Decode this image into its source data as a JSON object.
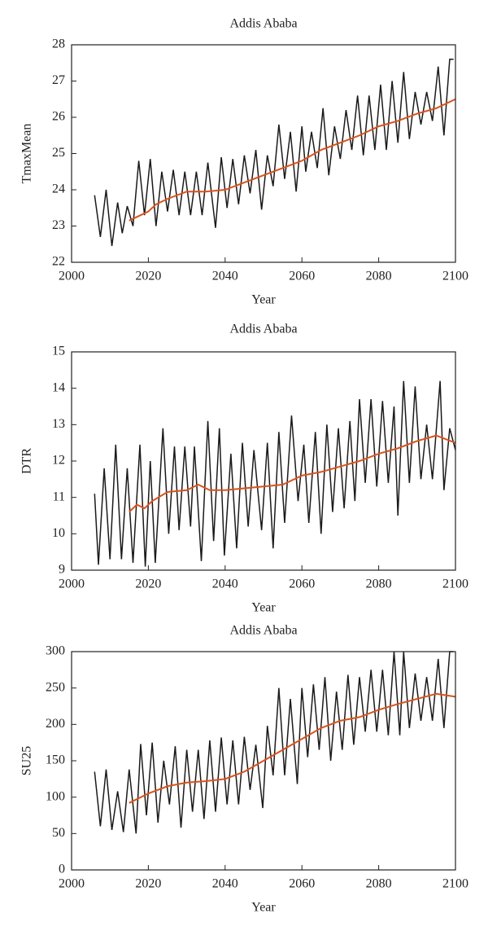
{
  "chart_data": [
    {
      "type": "line",
      "title": "Addis Ababa",
      "xlabel": "Year",
      "ylabel": "TmaxMean",
      "xlim": [
        2000,
        2100
      ],
      "xticks": [
        2000,
        2020,
        2040,
        2060,
        2080,
        2100
      ],
      "ylim": [
        22,
        28
      ],
      "yticks": [
        22,
        23,
        24,
        25,
        26,
        27,
        28
      ],
      "series": [
        {
          "color": "#1a1a1a",
          "x": [
            2006,
            2007.5,
            2009,
            2010.5,
            2012,
            2013.2,
            2014.5,
            2016,
            2017.5,
            2019,
            2020.5,
            2022,
            2023.5,
            2025,
            2026.5,
            2028,
            2029.5,
            2031,
            2032.5,
            2034,
            2035.5,
            2037.5,
            2039,
            2040.5,
            2042,
            2043.5,
            2045,
            2046.5,
            2048,
            2049.5,
            2051,
            2052.5,
            2054,
            2055.5,
            2057,
            2058.5,
            2060,
            2061,
            2062.5,
            2064,
            2065.5,
            2067,
            2068.5,
            2070,
            2071.5,
            2073,
            2074.5,
            2076,
            2077.5,
            2079,
            2080.5,
            2082,
            2083.5,
            2085,
            2086.5,
            2088,
            2089.5,
            2091,
            2092.5,
            2094,
            2095.5,
            2097,
            2098.5,
            2099.5
          ],
          "values": [
            23.85,
            22.7,
            24.0,
            22.45,
            23.65,
            22.8,
            23.55,
            23.0,
            24.8,
            23.3,
            24.85,
            23.0,
            24.5,
            23.4,
            24.55,
            23.3,
            24.5,
            23.3,
            24.5,
            23.3,
            24.75,
            22.95,
            24.9,
            23.5,
            24.85,
            23.6,
            24.95,
            23.9,
            25.1,
            23.45,
            24.95,
            24.1,
            25.8,
            24.3,
            25.6,
            23.95,
            25.75,
            24.5,
            25.6,
            24.6,
            26.25,
            24.4,
            25.75,
            24.85,
            26.2,
            25.1,
            26.6,
            24.95,
            26.6,
            25.1,
            26.9,
            25.1,
            27.0,
            25.3,
            27.25,
            25.4,
            26.7,
            25.8,
            26.7,
            25.9,
            27.4,
            25.5,
            27.6,
            27.6
          ]
        },
        {
          "color": "#d9531e",
          "x": [
            2015,
            2020,
            2022,
            2025,
            2030,
            2035,
            2040,
            2045,
            2050,
            2055,
            2060,
            2065,
            2070,
            2075,
            2080,
            2085,
            2090,
            2095,
            2100
          ],
          "values": [
            23.15,
            23.4,
            23.6,
            23.75,
            23.95,
            23.95,
            24.0,
            24.2,
            24.4,
            24.6,
            24.8,
            25.1,
            25.3,
            25.5,
            25.75,
            25.9,
            26.1,
            26.25,
            26.5
          ]
        }
      ]
    },
    {
      "type": "line",
      "title": "Addis Ababa",
      "xlabel": "Year",
      "ylabel": "DTR",
      "xlim": [
        2000,
        2100
      ],
      "xticks": [
        2000,
        2020,
        2040,
        2060,
        2080,
        2100
      ],
      "ylim": [
        9,
        15
      ],
      "yticks": [
        9,
        10,
        11,
        12,
        13,
        14,
        15
      ],
      "series": [
        {
          "color": "#1a1a1a",
          "x": [
            2006,
            2007,
            2008.5,
            2010,
            2011.5,
            2013,
            2014.5,
            2016,
            2017.8,
            2019.2,
            2020.5,
            2021.8,
            2023.8,
            2025.3,
            2026.8,
            2028,
            2029.5,
            2031,
            2032,
            2033.8,
            2035.5,
            2037,
            2038.5,
            2039.8,
            2041.5,
            2043,
            2044.5,
            2046,
            2047.5,
            2049.5,
            2051,
            2052.5,
            2054,
            2055.5,
            2057.3,
            2059,
            2060.5,
            2061.8,
            2063.5,
            2065,
            2066.5,
            2068,
            2069.5,
            2071,
            2072.5,
            2073.8,
            2075,
            2076.5,
            2078,
            2079.5,
            2081,
            2082.5,
            2084,
            2085,
            2086.5,
            2088,
            2089.5,
            2091,
            2092.5,
            2094,
            2096,
            2097,
            2098.5,
            2100
          ],
          "values": [
            11.1,
            9.15,
            11.8,
            9.3,
            12.45,
            9.3,
            11.8,
            9.2,
            12.45,
            9.1,
            12.0,
            9.2,
            12.9,
            10.0,
            12.4,
            10.1,
            12.4,
            10.2,
            12.4,
            9.25,
            13.1,
            9.8,
            12.9,
            9.4,
            12.2,
            9.6,
            12.5,
            10.2,
            12.3,
            10.1,
            12.5,
            9.6,
            12.8,
            10.3,
            13.25,
            10.9,
            12.45,
            10.3,
            12.8,
            10.0,
            13.0,
            10.6,
            12.9,
            10.7,
            13.1,
            10.9,
            13.7,
            11.4,
            13.7,
            11.3,
            13.65,
            11.4,
            13.5,
            10.5,
            14.2,
            11.4,
            14.05,
            11.5,
            13.0,
            11.5,
            14.2,
            11.2,
            12.9,
            12.3
          ]
        },
        {
          "color": "#d9531e",
          "x": [
            2015,
            2017,
            2019,
            2021,
            2025,
            2030,
            2033,
            2036,
            2040,
            2045,
            2050,
            2055,
            2060,
            2065,
            2070,
            2075,
            2080,
            2085,
            2090,
            2095,
            2100
          ],
          "values": [
            10.6,
            10.8,
            10.7,
            10.9,
            11.15,
            11.2,
            11.35,
            11.2,
            11.2,
            11.25,
            11.3,
            11.35,
            11.6,
            11.7,
            11.85,
            12.0,
            12.2,
            12.35,
            12.55,
            12.7,
            12.5
          ]
        }
      ]
    },
    {
      "type": "line",
      "title": "Addis Ababa",
      "xlabel": "Year",
      "ylabel": "SU25",
      "xlim": [
        2000,
        2100
      ],
      "xticks": [
        2000,
        2020,
        2040,
        2060,
        2080,
        2100
      ],
      "ylim": [
        0,
        300
      ],
      "yticks": [
        0,
        50,
        100,
        150,
        200,
        250,
        300
      ],
      "series": [
        {
          "color": "#1a1a1a",
          "x": [
            2006,
            2007.5,
            2009,
            2010.5,
            2012,
            2013.5,
            2015,
            2016.8,
            2018,
            2019.5,
            2021,
            2022.5,
            2024,
            2025.5,
            2027,
            2028.5,
            2030,
            2031.5,
            2033,
            2034.5,
            2036,
            2037.5,
            2039,
            2040.5,
            2042,
            2043.5,
            2045,
            2046.5,
            2048,
            2049.8,
            2051,
            2052.5,
            2054,
            2055.5,
            2057,
            2058.8,
            2060,
            2061.5,
            2063,
            2064.5,
            2066,
            2067.5,
            2069,
            2070.5,
            2072,
            2073.5,
            2075,
            2076.5,
            2078,
            2079.5,
            2081,
            2082.5,
            2084,
            2085.5,
            2086.5,
            2088,
            2089.5,
            2091,
            2092.5,
            2094,
            2095.5,
            2097,
            2098.5,
            2099.5
          ],
          "values": [
            135,
            60,
            138,
            55,
            108,
            52,
            138,
            50,
            173,
            75,
            175,
            65,
            150,
            90,
            170,
            58,
            165,
            80,
            165,
            70,
            178,
            80,
            182,
            90,
            178,
            90,
            183,
            110,
            172,
            85,
            198,
            130,
            250,
            130,
            235,
            118,
            250,
            155,
            255,
            165,
            265,
            150,
            245,
            165,
            268,
            172,
            265,
            190,
            275,
            190,
            275,
            185,
            300,
            185,
            300,
            195,
            270,
            205,
            265,
            205,
            290,
            195,
            300,
            300
          ]
        },
        {
          "color": "#d9531e",
          "x": [
            2015,
            2020,
            2025,
            2030,
            2035,
            2040,
            2045,
            2050,
            2055,
            2060,
            2065,
            2070,
            2075,
            2080,
            2085,
            2090,
            2095,
            2100
          ],
          "values": [
            92,
            105,
            115,
            120,
            122,
            125,
            135,
            150,
            165,
            180,
            195,
            205,
            210,
            220,
            228,
            235,
            242,
            238
          ]
        }
      ]
    }
  ]
}
